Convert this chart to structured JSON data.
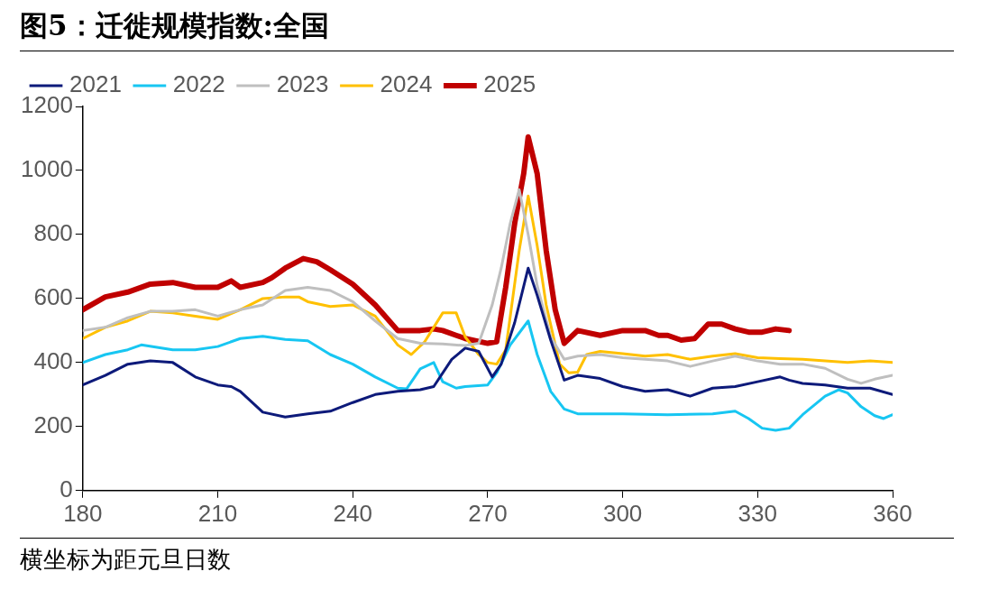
{
  "chart_data": {
    "type": "line",
    "title": "图5：迁徙规模指数:全国",
    "annotations": [
      "横坐标为距元旦日数"
    ],
    "xlim": [
      180,
      360
    ],
    "xticks": [
      180,
      210,
      240,
      270,
      300,
      330,
      360
    ],
    "ylim": [
      0,
      1200
    ],
    "yticks": [
      0,
      200,
      400,
      600,
      800,
      1000,
      1200
    ],
    "grid": false,
    "legend": "top",
    "marker": "none",
    "line_style": "solid",
    "series": [
      {
        "name": "2021",
        "color": "#0d1a7a",
        "x": [
          180,
          185,
          190,
          195,
          200,
          205,
          210,
          213,
          215,
          220,
          225,
          230,
          235,
          240,
          245,
          250,
          255,
          258,
          262,
          265,
          268,
          271,
          273,
          276,
          279,
          281,
          284,
          287,
          290,
          295,
          300,
          305,
          310,
          315,
          320,
          325,
          330,
          335,
          337,
          340,
          345,
          350,
          355,
          360
        ],
        "values": [
          330,
          360,
          395,
          405,
          400,
          355,
          330,
          325,
          310,
          245,
          230,
          240,
          248,
          275,
          300,
          310,
          315,
          325,
          410,
          445,
          435,
          355,
          395,
          525,
          695,
          610,
          470,
          345,
          360,
          350,
          325,
          310,
          315,
          295,
          320,
          325,
          340,
          355,
          345,
          335,
          330,
          320,
          320,
          300
        ]
      },
      {
        "name": "2022",
        "color": "#17c6f2",
        "x": [
          180,
          185,
          190,
          193,
          200,
          205,
          210,
          215,
          220,
          225,
          230,
          235,
          240,
          245,
          250,
          252,
          255,
          258,
          260,
          263,
          265,
          270,
          272,
          275,
          279,
          281,
          284,
          287,
          290,
          295,
          300,
          310,
          320,
          325,
          328,
          331,
          334,
          337,
          340,
          345,
          348,
          350,
          353,
          356,
          358,
          360
        ],
        "values": [
          400,
          425,
          440,
          455,
          440,
          440,
          450,
          475,
          482,
          472,
          468,
          425,
          395,
          355,
          320,
          318,
          380,
          400,
          340,
          320,
          325,
          330,
          368,
          455,
          530,
          425,
          310,
          255,
          240,
          240,
          240,
          237,
          240,
          248,
          225,
          195,
          188,
          195,
          237,
          295,
          315,
          305,
          262,
          234,
          225,
          237
        ]
      },
      {
        "name": "2023",
        "color": "#bfbfbf",
        "x": [
          180,
          185,
          190,
          195,
          200,
          205,
          210,
          215,
          220,
          225,
          230,
          235,
          240,
          245,
          250,
          255,
          260,
          265,
          268,
          271,
          273,
          275,
          277,
          279,
          281,
          284,
          287,
          290,
          295,
          300,
          305,
          310,
          315,
          320,
          325,
          330,
          335,
          340,
          345,
          350,
          353,
          356,
          360
        ],
        "values": [
          500,
          510,
          540,
          560,
          560,
          565,
          545,
          565,
          580,
          625,
          635,
          625,
          590,
          530,
          475,
          460,
          458,
          453,
          460,
          580,
          695,
          835,
          940,
          800,
          640,
          480,
          410,
          420,
          425,
          415,
          410,
          405,
          388,
          405,
          420,
          405,
          395,
          395,
          382,
          348,
          335,
          348,
          360
        ]
      },
      {
        "name": "2024",
        "color": "#ffc000",
        "x": [
          180,
          185,
          190,
          195,
          200,
          205,
          210,
          215,
          220,
          225,
          228,
          230,
          235,
          240,
          245,
          250,
          253,
          256,
          258,
          260,
          263,
          265,
          268,
          270,
          272,
          274,
          277,
          279,
          281,
          283,
          286,
          288,
          290,
          292,
          295,
          300,
          305,
          310,
          315,
          320,
          325,
          330,
          335,
          340,
          345,
          350,
          355,
          360
        ],
        "values": [
          475,
          510,
          530,
          560,
          555,
          545,
          535,
          565,
          600,
          605,
          605,
          590,
          575,
          580,
          545,
          455,
          425,
          465,
          510,
          555,
          555,
          480,
          425,
          400,
          395,
          440,
          750,
          920,
          765,
          580,
          395,
          368,
          370,
          425,
          435,
          428,
          420,
          425,
          410,
          420,
          428,
          415,
          412,
          410,
          405,
          400,
          405,
          400
        ]
      },
      {
        "name": "2025",
        "color": "#c00000",
        "x": [
          180,
          185,
          190,
          195,
          200,
          205,
          210,
          213,
          215,
          220,
          222,
          225,
          229,
          232,
          235,
          240,
          245,
          250,
          255,
          258,
          260,
          263,
          265,
          270,
          272,
          274,
          276,
          278,
          279,
          281,
          283,
          285,
          287,
          290,
          295,
          300,
          305,
          308,
          310,
          313,
          316,
          319,
          322,
          325,
          328,
          331,
          334,
          337
        ],
        "values": [
          565,
          605,
          620,
          645,
          650,
          635,
          635,
          655,
          635,
          650,
          665,
          695,
          725,
          715,
          690,
          645,
          580,
          500,
          500,
          505,
          500,
          485,
          475,
          460,
          465,
          635,
          835,
          990,
          1105,
          990,
          750,
          565,
          460,
          500,
          485,
          500,
          500,
          485,
          485,
          470,
          475,
          520,
          520,
          505,
          495,
          495,
          505,
          500
        ]
      }
    ]
  }
}
